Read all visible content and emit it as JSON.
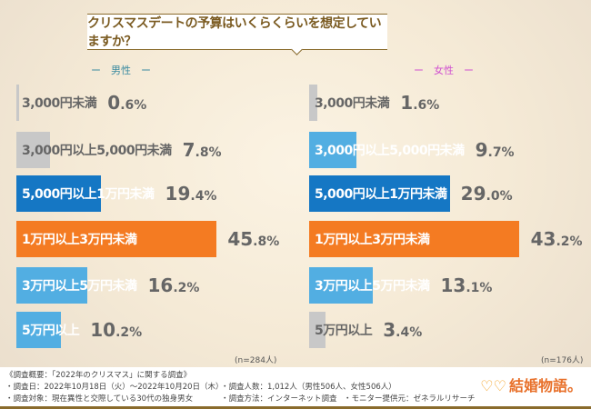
{
  "title": "クリスマスデートの予算はいくらくらいを想定していますか？",
  "chart_data": [
    {
      "type": "bar",
      "orientation": "horizontal",
      "title": "男性",
      "n_label": "(n=284人)",
      "categories": [
        "3,000円未満",
        "3,000円以上5,000円未満",
        "5,000円以上1万円未満",
        "1万円以上3万円未満",
        "3万円以上5万円未満",
        "5万円以上"
      ],
      "values": [
        0.6,
        7.8,
        19.4,
        45.8,
        16.2,
        10.2
      ],
      "colors": [
        "#c8c8c8",
        "#c8c8c8",
        "#1577c4",
        "#f47b22",
        "#52aee2",
        "#52aee2"
      ],
      "unit": "%"
    },
    {
      "type": "bar",
      "orientation": "horizontal",
      "title": "女性",
      "n_label": "(n=176人)",
      "categories": [
        "3,000円未満",
        "3,000円以上5,000円未満",
        "5,000円以上1万円未満",
        "1万円以上3万円未満",
        "3万円以上5万円未満",
        "5万円以上"
      ],
      "values": [
        1.6,
        9.7,
        29.0,
        43.2,
        13.1,
        3.4
      ],
      "colors": [
        "#c8c8c8",
        "#52aee2",
        "#1577c4",
        "#f47b22",
        "#52aee2",
        "#c8c8c8"
      ],
      "unit": "%"
    }
  ],
  "gender_labels": {
    "male": "ー　男性　ー",
    "female": "ー　女性　ー"
  },
  "footer": {
    "heading": "《調査概要：「2022年のクリスマス」に関する調査》",
    "date": "・調査日：2022年10月18日（火）～2022年10月20日（木）",
    "target": "・調査対象：現在異性と交際している30代の独身男女",
    "count": "・調査人数：1,012人（男性506人、女性506人）",
    "method": "・調査方法：インターネット調査",
    "monitor": "・モニター提供元：ゼネラルリサーチ",
    "logo": "結婚物語。"
  }
}
